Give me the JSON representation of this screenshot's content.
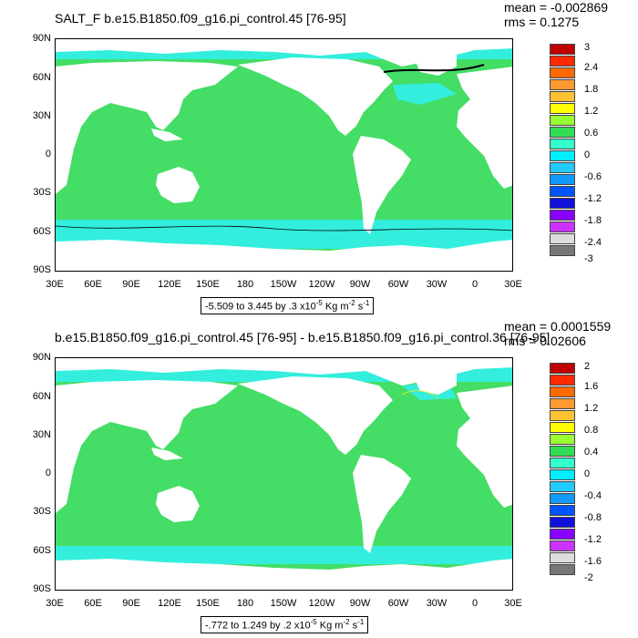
{
  "plots": [
    {
      "title": "SALT_F b.e15.B1850.f09_g16.pi_control.45 [76-95]",
      "mean_text": "mean = -0.002869",
      "rms_text": "rms = 0.1275",
      "range_text": "-5.509 to 3.445 by .3 x10",
      "range_units": "Kg m",
      "range_units_tail": "s",
      "lat_labels": [
        "90N",
        "60N",
        "30N",
        "0",
        "30S",
        "60S",
        "90S"
      ],
      "lon_labels": [
        "30E",
        "60E",
        "90E",
        "120E",
        "150E",
        "180",
        "150W",
        "120W",
        "90W",
        "60W",
        "30W",
        "0",
        "30E"
      ],
      "legend_labels": [
        "3",
        "2.4",
        "1.8",
        "1.2",
        "0.6",
        "0",
        "-0.6",
        "-1.2",
        "-1.8",
        "-2.4",
        "-3"
      ],
      "legend_colors": [
        "#c00000",
        "#ff2a00",
        "#ff6a00",
        "#ff9a33",
        "#ffc233",
        "#ffff00",
        "#99ff33",
        "#33dd55",
        "#33ffcc",
        "#00eeff",
        "#22ccff",
        "#1199ff",
        "#0055ff",
        "#1111dd",
        "#8800ff",
        "#cc33ff",
        "#dddddd",
        "#777777"
      ]
    },
    {
      "title": "b.e15.B1850.f09_g16.pi_control.45 [76-95] - b.e15.B1850.f09_g16.pi_control.36 [76-95]",
      "mean_text": "mean = 0.0001559",
      "rms_text": "rms = 0.02606",
      "range_text": "-.772 to 1.249 by .2 x10",
      "range_units": "Kg m",
      "range_units_tail": "s",
      "lat_labels": [
        "90N",
        "60N",
        "30N",
        "0",
        "30S",
        "60S",
        "90S"
      ],
      "lon_labels": [
        "30E",
        "60E",
        "90E",
        "120E",
        "150E",
        "180",
        "150W",
        "120W",
        "90W",
        "60W",
        "30W",
        "0",
        "30E"
      ],
      "legend_labels": [
        "2",
        "1.6",
        "1.2",
        "0.8",
        "0.4",
        "0",
        "-0.4",
        "-0.8",
        "-1.2",
        "-1.6",
        "-2"
      ],
      "legend_colors": [
        "#c00000",
        "#ff2a00",
        "#ff6a00",
        "#ff9a33",
        "#ffc233",
        "#ffff00",
        "#99ff33",
        "#33dd55",
        "#33ffcc",
        "#00eeff",
        "#22ccff",
        "#1199ff",
        "#0055ff",
        "#1111dd",
        "#8800ff",
        "#cc33ff",
        "#dddddd",
        "#777777"
      ]
    }
  ],
  "colors": {
    "ocean_fill": "#44dd66",
    "band_fill": "#33eedd",
    "land_fill": "#ffffff"
  }
}
